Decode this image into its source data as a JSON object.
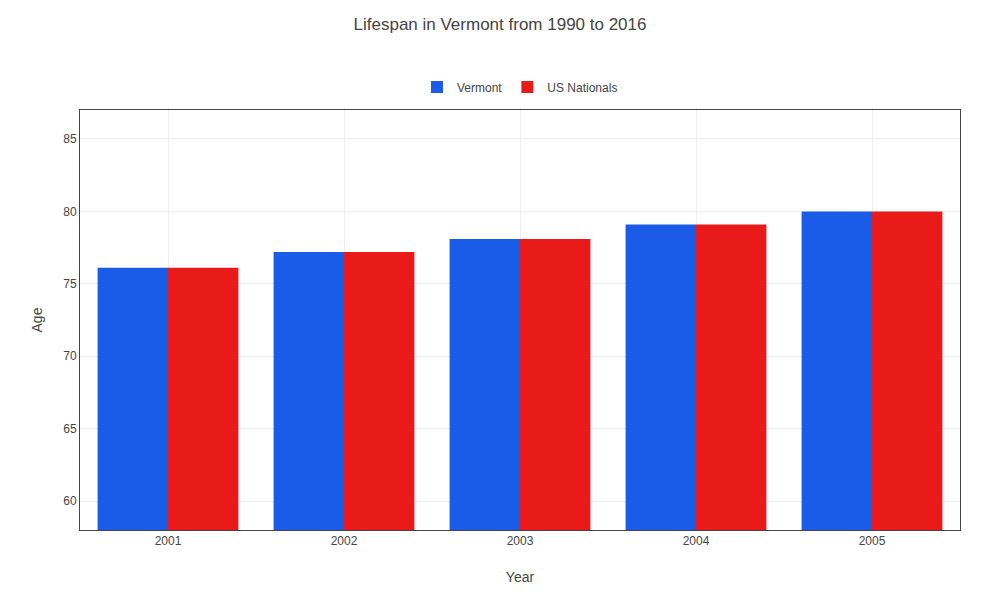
{
  "chart_data": {
    "type": "bar",
    "title": "Lifespan in Vermont from 1990 to 2016",
    "x_label": "Year",
    "y_label": "Age",
    "categories": [
      "2001",
      "2002",
      "2003",
      "2004",
      "2005"
    ],
    "series": [
      {
        "name": "Vermont",
        "color": "#1a5ce8",
        "values": [
          76.1,
          77.2,
          78.1,
          79.1,
          80.0
        ]
      },
      {
        "name": "US Nationals",
        "color": "#e81a1a",
        "values": [
          76.1,
          77.2,
          78.1,
          79.1,
          80.0
        ]
      }
    ],
    "ylim": [
      58,
      87
    ],
    "yticks": [
      60,
      65,
      70,
      75,
      80,
      85
    ],
    "grid": true,
    "legend": "top"
  }
}
